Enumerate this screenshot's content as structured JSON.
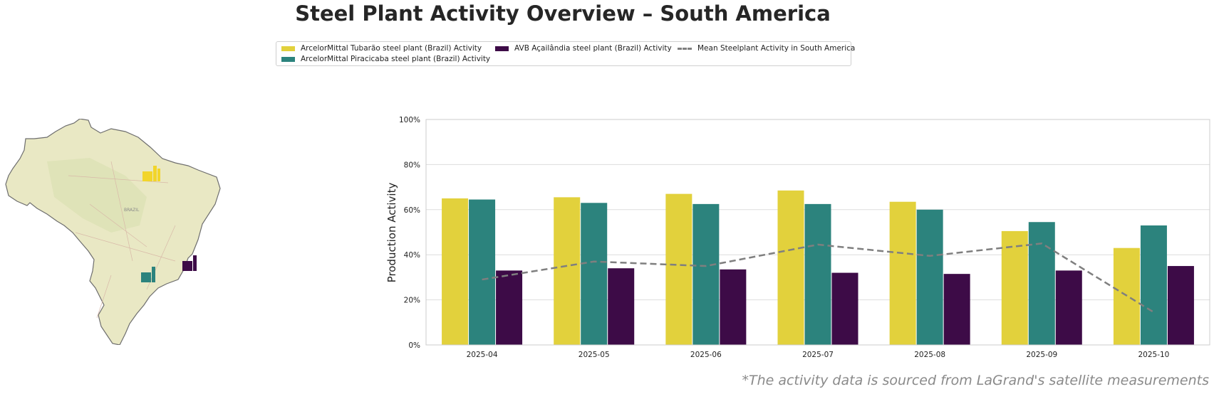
{
  "title": "Steel Plant Activity Overview – South America",
  "legend": {
    "tubarao": "ArcelorMittal Tubarão steel plant (Brazil) Activity",
    "piracicaba": "ArcelorMittal Piracicaba steel plant (Brazil) Activity",
    "acailandia": "AVB Açailândia steel plant (Brazil) Activity",
    "mean": "Mean Steelplant Activity in South America"
  },
  "map": {
    "country_label": "BRAZIL",
    "plant_icons": [
      "factory-icon-yellow",
      "factory-icon-teal",
      "factory-icon-purple"
    ]
  },
  "footnote": "*The activity data is sourced from LaGrand's satellite measurements",
  "colors": {
    "tubarao": "#e2d13c",
    "piracicaba": "#2c837d",
    "acailandia": "#3d0b47",
    "mean": "#7f7f7f"
  },
  "chart_data": {
    "type": "bar",
    "title": "",
    "xlabel": "",
    "ylabel": "Production Activity",
    "ylim": [
      0,
      100
    ],
    "yticks": [
      "0%",
      "20%",
      "40%",
      "60%",
      "80%",
      "100%"
    ],
    "categories": [
      "2025-04",
      "2025-05",
      "2025-06",
      "2025-07",
      "2025-08",
      "2025-09",
      "2025-10"
    ],
    "series": [
      {
        "name": "ArcelorMittal Tubarão steel plant (Brazil) Activity",
        "type": "bar",
        "values": [
          65,
          65.5,
          67,
          68.5,
          63.5,
          50.5,
          43
        ]
      },
      {
        "name": "ArcelorMittal Piracicaba steel plant (Brazil) Activity",
        "type": "bar",
        "values": [
          64.5,
          63,
          62.5,
          62.5,
          60,
          54.5,
          53
        ]
      },
      {
        "name": "AVB Açailândia steel plant (Brazil) Activity",
        "type": "bar",
        "values": [
          33,
          34,
          33.5,
          32,
          31.5,
          33,
          35
        ]
      },
      {
        "name": "Mean Steelplant Activity in South America",
        "type": "line",
        "style": "dashed",
        "values": [
          29,
          37,
          35,
          44.5,
          39.5,
          45,
          14.5
        ]
      }
    ],
    "grid": true,
    "legend_position": "top-center"
  }
}
